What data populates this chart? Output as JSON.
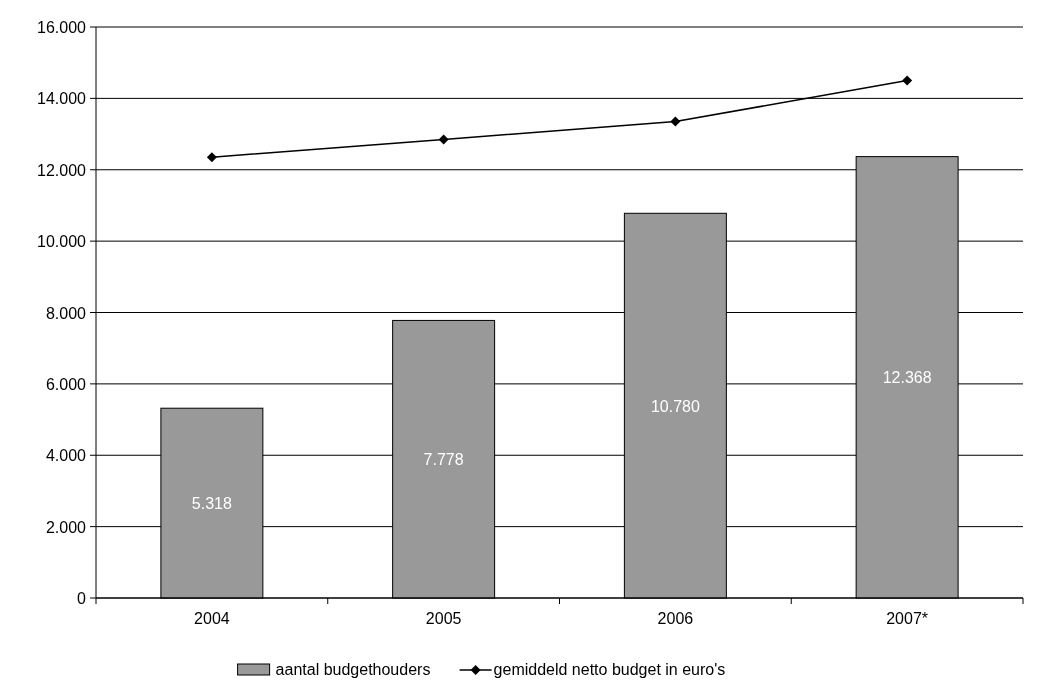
{
  "chart_data": {
    "type": "bar",
    "categories": [
      "2004",
      "2005",
      "2006",
      "2007*"
    ],
    "series": [
      {
        "name": "aantal budgethouders",
        "color": "#999999",
        "values": [
          5318,
          7778,
          10780,
          12368
        ],
        "value_labels": [
          "5.318",
          "7.778",
          "10.780",
          "12.368"
        ]
      },
      {
        "name": "gemiddeld netto budget in euro's",
        "type": "line",
        "color": "#000000",
        "values": [
          12350,
          12850,
          13350,
          14500
        ],
        "marker": "diamond"
      }
    ],
    "ylim": [
      0,
      16000
    ],
    "yticks": [
      0,
      {
        "value": 2000,
        "label": "2.000"
      },
      {
        "value": 4000,
        "label": "4.000"
      },
      {
        "value": 6000,
        "label": "6.000"
      },
      {
        "value": 8000,
        "label": "8.000"
      },
      {
        "value": 10000,
        "label": "10.000"
      },
      {
        "value": 12000,
        "label": "12.000"
      },
      {
        "value": 14000,
        "label": "14.000"
      },
      {
        "value": 16000,
        "label": "16.000"
      }
    ],
    "grid": "y",
    "legend": "bottom"
  }
}
